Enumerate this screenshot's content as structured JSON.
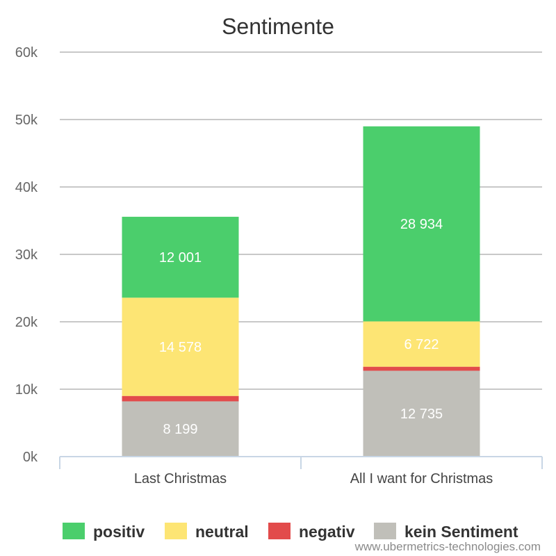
{
  "chart_data": {
    "type": "bar",
    "stacked": true,
    "title": "Sentimente",
    "categories": [
      "Last Christmas",
      "All I want for Christmas"
    ],
    "series": [
      {
        "name": "kein Sentiment",
        "values": [
          8199,
          12735
        ],
        "color": "#c0bfb9",
        "labels": [
          "8 199",
          "12 735"
        ]
      },
      {
        "name": "negativ",
        "values": [
          800,
          600
        ],
        "color": "#e24b4b",
        "labels": [
          "",
          ""
        ]
      },
      {
        "name": "neutral",
        "values": [
          14578,
          6722
        ],
        "color": "#fde574",
        "labels": [
          "14 578",
          "6 722"
        ]
      },
      {
        "name": "positiv",
        "values": [
          12001,
          28934
        ],
        "color": "#4bce6c",
        "labels": [
          "12 001",
          "28 934"
        ]
      }
    ],
    "legend_order": [
      "positiv",
      "neutral",
      "negativ",
      "kein Sentiment"
    ],
    "ylim": [
      0,
      60000
    ],
    "yticks": [
      0,
      10000,
      20000,
      30000,
      40000,
      50000,
      60000
    ],
    "ytick_labels": [
      "0k",
      "10k",
      "20k",
      "30k",
      "40k",
      "50k",
      "60k"
    ],
    "grid": true,
    "legend_position": "bottom",
    "xlabel": "",
    "ylabel": ""
  },
  "credit": "www.ubermetrics-technologies.com"
}
